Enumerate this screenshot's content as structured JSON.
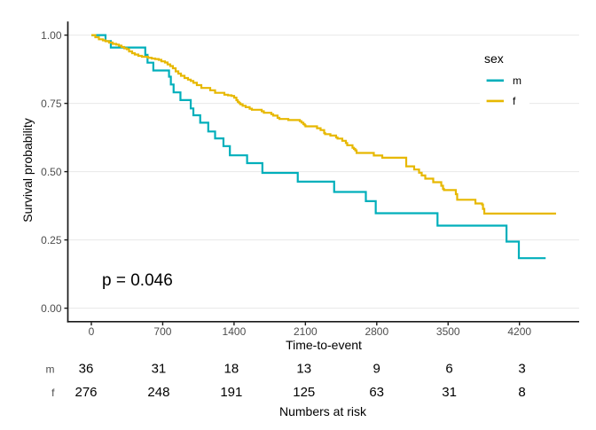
{
  "chart_data": {
    "type": "line",
    "subtype": "kaplan-meier-step",
    "title": "",
    "xlabel": "Time-to-event",
    "ylabel": "Survival probability",
    "x_ticks": [
      0,
      700,
      1400,
      2100,
      2800,
      3500,
      4200
    ],
    "x_tick_labels": [
      "0",
      "700",
      "1400",
      "2100",
      "2800",
      "3500",
      "4200"
    ],
    "xlim": [
      0,
      4559
    ],
    "y_ticks": [
      0.0,
      0.25,
      0.5,
      0.75,
      1.0
    ],
    "y_tick_labels": [
      "0.00",
      "0.25",
      "0.50",
      "0.75",
      "1.00"
    ],
    "ylim": [
      0,
      1
    ],
    "grid": "horizontal-major-only",
    "legend": {
      "title": "sex",
      "position": "right",
      "entries": [
        {
          "label": "m",
          "color": "#00AFBB"
        },
        {
          "label": "f",
          "color": "#E7B800"
        }
      ]
    },
    "annotations": [
      {
        "text": "p = 0.046"
      }
    ],
    "series": [
      {
        "name": "m",
        "color": "#00AFBB",
        "steps": [
          [
            0,
            1.0
          ],
          [
            139,
            0.9782
          ],
          [
            191,
            0.9545
          ],
          [
            529,
            0.9276
          ],
          [
            551,
            0.899
          ],
          [
            608,
            0.8705
          ],
          [
            762,
            0.8477
          ],
          [
            780,
            0.8192
          ],
          [
            807,
            0.7903
          ],
          [
            874,
            0.762
          ],
          [
            975,
            0.7315
          ],
          [
            1001,
            0.7065
          ],
          [
            1068,
            0.6792
          ],
          [
            1147,
            0.6471
          ],
          [
            1214,
            0.6218
          ],
          [
            1296,
            0.5935
          ],
          [
            1359,
            0.5597
          ],
          [
            1528,
            0.5312
          ],
          [
            1678,
            0.4955
          ],
          [
            2025,
            0.4633
          ],
          [
            2382,
            0.4256
          ],
          [
            2693,
            0.3919
          ],
          [
            2790,
            0.3477
          ],
          [
            3396,
            0.3023
          ],
          [
            4073,
            0.2438
          ],
          [
            4194,
            0.1831
          ],
          [
            4457,
            0.1831
          ]
        ]
      },
      {
        "name": "f",
        "color": "#E7B800",
        "steps": [
          [
            0,
            1.0
          ],
          [
            39,
            0.9922
          ],
          [
            74,
            0.9847
          ],
          [
            113,
            0.9808
          ],
          [
            139,
            0.9776
          ],
          [
            174,
            0.9727
          ],
          [
            209,
            0.9679
          ],
          [
            244,
            0.9653
          ],
          [
            270,
            0.9614
          ],
          [
            296,
            0.9565
          ],
          [
            322,
            0.9516
          ],
          [
            348,
            0.9484
          ],
          [
            370,
            0.9403
          ],
          [
            400,
            0.9338
          ],
          [
            426,
            0.9289
          ],
          [
            461,
            0.924
          ],
          [
            496,
            0.9208
          ],
          [
            557,
            0.9172
          ],
          [
            592,
            0.9143
          ],
          [
            626,
            0.9123
          ],
          [
            661,
            0.9094
          ],
          [
            687,
            0.9039
          ],
          [
            722,
            0.8997
          ],
          [
            748,
            0.8929
          ],
          [
            774,
            0.8867
          ],
          [
            800,
            0.8786
          ],
          [
            827,
            0.8672
          ],
          [
            853,
            0.8591
          ],
          [
            879,
            0.851
          ],
          [
            914,
            0.8429
          ],
          [
            948,
            0.837
          ],
          [
            975,
            0.8321
          ],
          [
            1001,
            0.8253
          ],
          [
            1035,
            0.8169
          ],
          [
            1079,
            0.8065
          ],
          [
            1166,
            0.7981
          ],
          [
            1214,
            0.7886
          ],
          [
            1305,
            0.7818
          ],
          [
            1340,
            0.7795
          ],
          [
            1375,
            0.7773
          ],
          [
            1401,
            0.7711
          ],
          [
            1423,
            0.7617
          ],
          [
            1436,
            0.7558
          ],
          [
            1449,
            0.751
          ],
          [
            1462,
            0.7468
          ],
          [
            1484,
            0.7412
          ],
          [
            1514,
            0.736
          ],
          [
            1553,
            0.7305
          ],
          [
            1575,
            0.7266
          ],
          [
            1671,
            0.7211
          ],
          [
            1692,
            0.7156
          ],
          [
            1766,
            0.7104
          ],
          [
            1784,
            0.7052
          ],
          [
            1827,
            0.6971
          ],
          [
            1845,
            0.6929
          ],
          [
            1932,
            0.689
          ],
          [
            2045,
            0.6847
          ],
          [
            2062,
            0.6795
          ],
          [
            2080,
            0.674
          ],
          [
            2093,
            0.6698
          ],
          [
            2101,
            0.6659
          ],
          [
            2214,
            0.6591
          ],
          [
            2249,
            0.6523
          ],
          [
            2284,
            0.6416
          ],
          [
            2293,
            0.6373
          ],
          [
            2345,
            0.6321
          ],
          [
            2401,
            0.6253
          ],
          [
            2415,
            0.6211
          ],
          [
            2462,
            0.613
          ],
          [
            2497,
            0.6049
          ],
          [
            2510,
            0.5968
          ],
          [
            2562,
            0.5873
          ],
          [
            2576,
            0.5831
          ],
          [
            2589,
            0.5779
          ],
          [
            2602,
            0.5685
          ],
          [
            2771,
            0.5591
          ],
          [
            2854,
            0.551
          ],
          [
            3089,
            0.5195
          ],
          [
            3167,
            0.5078
          ],
          [
            3215,
            0.4961
          ],
          [
            3241,
            0.486
          ],
          [
            3276,
            0.4744
          ],
          [
            3354,
            0.4614
          ],
          [
            3433,
            0.4484
          ],
          [
            3450,
            0.437
          ],
          [
            3459,
            0.4325
          ],
          [
            3576,
            0.4175
          ],
          [
            3589,
            0.3971
          ],
          [
            3768,
            0.3834
          ],
          [
            3833,
            0.3795
          ],
          [
            3842,
            0.3636
          ],
          [
            3855,
            0.3464
          ],
          [
            4559,
            0.3464
          ]
        ]
      }
    ],
    "risk_table": {
      "title": "Numbers at risk",
      "times": [
        0,
        700,
        1400,
        2100,
        2800,
        3500,
        4200
      ],
      "rows": [
        {
          "label": "m",
          "counts": [
            36,
            31,
            18,
            13,
            9,
            6,
            3
          ]
        },
        {
          "label": "f",
          "counts": [
            276,
            248,
            191,
            125,
            63,
            31,
            8
          ]
        }
      ]
    },
    "colors": {
      "axis_line": "#1a1a1a",
      "tick_label": "#4d4d4d",
      "gridline": "#ebebeb",
      "text": "#000000",
      "background": "#ffffff"
    }
  }
}
